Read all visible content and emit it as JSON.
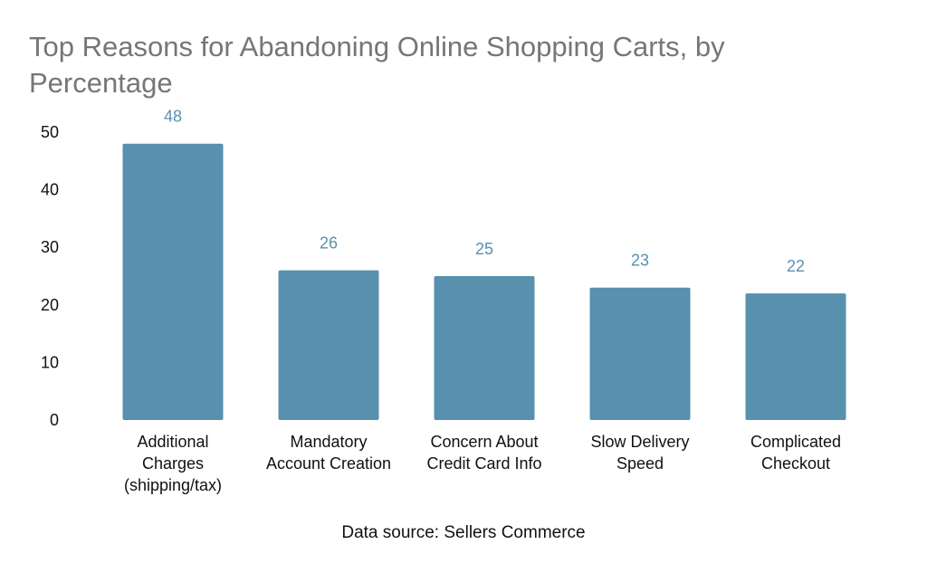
{
  "chart_data": {
    "type": "bar",
    "title": "Top Reasons for Abandoning Online Shopping Carts, by Percentage",
    "categories": [
      "Additional Charges (shipping/tax)",
      "Mandatory Account Creation",
      "Concern About Credit Card Info",
      "Slow Delivery Speed",
      "Complicated Checkout"
    ],
    "category_lines": [
      [
        "Additional",
        "Charges",
        "(shipping/tax)"
      ],
      [
        "Mandatory",
        "Account Creation"
      ],
      [
        "Concern About",
        "Credit Card Info"
      ],
      [
        "Slow Delivery",
        "Speed"
      ],
      [
        "Complicated",
        "Checkout"
      ]
    ],
    "values": [
      48,
      26,
      25,
      23,
      22
    ],
    "xlabel": "",
    "ylabel": "",
    "ylim": [
      0,
      50
    ],
    "yticks": [
      0,
      10,
      20,
      30,
      40,
      50
    ],
    "grid": false,
    "data_labels": true,
    "source": "Data source: Sellers Commerce",
    "colors": {
      "bar": "#5890ae",
      "value_label": "#5a91b0",
      "title": "#767676"
    }
  }
}
